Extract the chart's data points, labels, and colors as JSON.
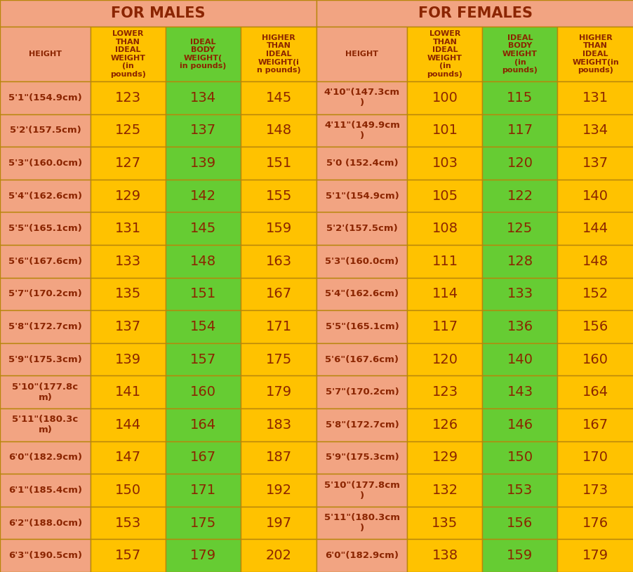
{
  "title_males": "FOR MALES",
  "title_females": "FOR FEMALES",
  "col_headers_males": [
    "HEIGHT",
    "LOWER\nTHAN\nIDEAL\nWEIGHT\n(in\npounds)",
    "IDEAL\nBODY\nWEIGHT(\nin pounds)",
    "HIGHER\nTHAN\nIDEAL\nWEIGHT(i\nn pounds)"
  ],
  "col_headers_females": [
    "HEIGHT",
    "LOWER\nTHAN\nIDEAL\nWEIGHT\n(in\npounds)",
    "IDEAL\nBODY\nWEIGHT\n(in\npounds)",
    "HIGHER\nTHAN\nIDEAL\nWEIGHT(in\npounds)"
  ],
  "males": [
    [
      "5'1\"(154.9cm)",
      "123",
      "134",
      "145"
    ],
    [
      "5'2'(157.5cm)",
      "125",
      "137",
      "148"
    ],
    [
      "5'3\"(160.0cm)",
      "127",
      "139",
      "151"
    ],
    [
      "5'4\"(162.6cm)",
      "129",
      "142",
      "155"
    ],
    [
      "5'5\"(165.1cm)",
      "131",
      "145",
      "159"
    ],
    [
      "5'6\"(167.6cm)",
      "133",
      "148",
      "163"
    ],
    [
      "5'7\"(170.2cm)",
      "135",
      "151",
      "167"
    ],
    [
      "5'8\"(172.7cm)",
      "137",
      "154",
      "171"
    ],
    [
      "5'9\"(175.3cm)",
      "139",
      "157",
      "175"
    ],
    [
      "5'10\"(177.8c\nm)",
      "141",
      "160",
      "179"
    ],
    [
      "5'11\"(180.3c\nm)",
      "144",
      "164",
      "183"
    ],
    [
      "6'0\"(182.9cm)",
      "147",
      "167",
      "187"
    ],
    [
      "6'1\"(185.4cm)",
      "150",
      "171",
      "192"
    ],
    [
      "6'2\"(188.0cm)",
      "153",
      "175",
      "197"
    ],
    [
      "6'3\"(190.5cm)",
      "157",
      "179",
      "202"
    ]
  ],
  "females": [
    [
      "4'10\"(147.3cm\n)",
      "100",
      "115",
      "131"
    ],
    [
      "4'11\"(149.9cm\n)",
      "101",
      "117",
      "134"
    ],
    [
      "5'0 (152.4cm)",
      "103",
      "120",
      "137"
    ],
    [
      "5'1\"(154.9cm)",
      "105",
      "122",
      "140"
    ],
    [
      "5'2'(157.5cm)",
      "108",
      "125",
      "144"
    ],
    [
      "5'3\"(160.0cm)",
      "111",
      "128",
      "148"
    ],
    [
      "5'4\"(162.6cm)",
      "114",
      "133",
      "152"
    ],
    [
      "5'5\"(165.1cm)",
      "117",
      "136",
      "156"
    ],
    [
      "5'6\"(167.6cm)",
      "120",
      "140",
      "160"
    ],
    [
      "5'7\"(170.2cm)",
      "123",
      "143",
      "164"
    ],
    [
      "5'8\"(172.7cm)",
      "126",
      "146",
      "167"
    ],
    [
      "5'9\"(175.3cm)",
      "129",
      "150",
      "170"
    ],
    [
      "5'10\"(177.8cm\n)",
      "132",
      "153",
      "173"
    ],
    [
      "5'11\"(180.3cm\n)",
      "135",
      "156",
      "176"
    ],
    [
      "6'0\"(182.9cm)",
      "138",
      "159",
      "179"
    ]
  ],
  "color_salmon": "#F2A482",
  "color_yellow": "#FFC200",
  "color_green": "#66CC33",
  "text_color": "#8B4513",
  "border_color": "#B8860B",
  "title_text_color": "#8B2500"
}
